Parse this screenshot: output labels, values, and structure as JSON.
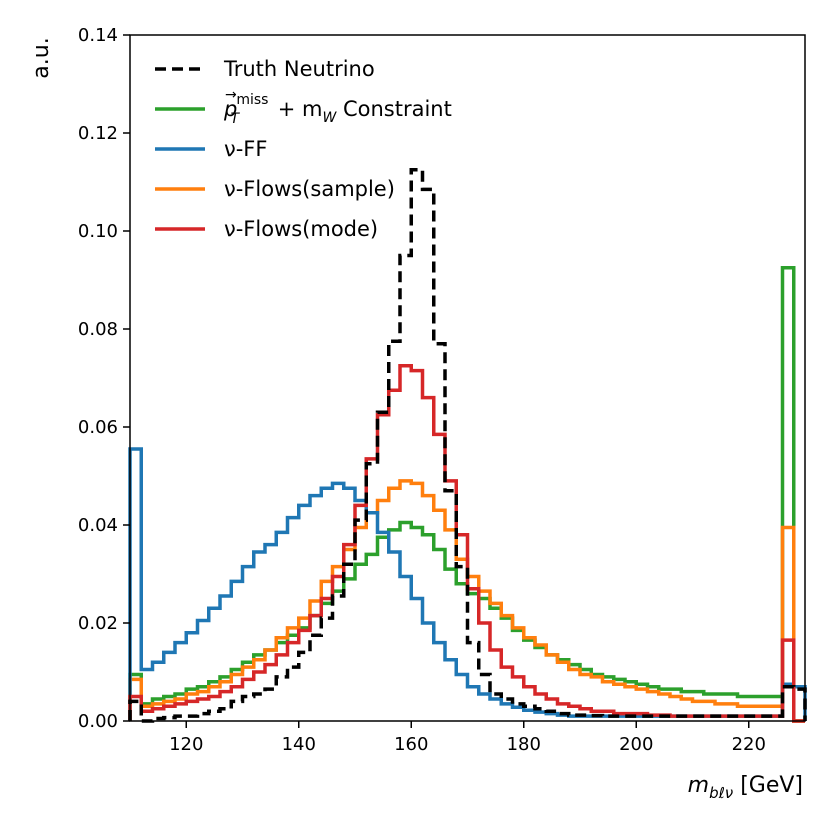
{
  "chart_data": {
    "type": "step-histogram",
    "title": "",
    "xlabel_main": "m",
    "xlabel_sub": "bℓν",
    "xlabel_unit": " [GeV]",
    "ylabel": "a.u.",
    "xlim": [
      110,
      230
    ],
    "ylim": [
      0,
      0.14
    ],
    "xticks": [
      120,
      140,
      160,
      180,
      200,
      220
    ],
    "yticks": [
      0.0,
      0.02,
      0.04,
      0.06,
      0.08,
      0.1,
      0.12,
      0.14
    ],
    "ytick_labels": [
      "0.00",
      "0.02",
      "0.04",
      "0.06",
      "0.08",
      "0.10",
      "0.12",
      "0.14"
    ],
    "bin_width": 2,
    "x_start": 110,
    "legend_position": "top-left",
    "series": [
      {
        "name": "Truth Neutrino",
        "color": "#000000",
        "dashed": true,
        "values": [
          0.004,
          0.0,
          0.0005,
          0.0007,
          0.001,
          0.001,
          0.0015,
          0.002,
          0.0025,
          0.004,
          0.005,
          0.0055,
          0.0065,
          0.009,
          0.011,
          0.014,
          0.0175,
          0.021,
          0.0255,
          0.032,
          0.041,
          0.0525,
          0.063,
          0.0775,
          0.095,
          0.1125,
          0.1085,
          0.077,
          0.047,
          0.0315,
          0.016,
          0.0095,
          0.0055,
          0.0045,
          0.0035,
          0.003,
          0.0025,
          0.002,
          0.0015,
          0.0012,
          0.0012,
          0.0011,
          0.001,
          0.001,
          0.001,
          0.001,
          0.001,
          0.001,
          0.001,
          0.001,
          0.001,
          0.001,
          0.001,
          0.001,
          0.001,
          0.001,
          0.001,
          0.001,
          0.007,
          0.0065
        ]
      },
      {
        "name": "p_T^miss + m_W Constraint",
        "color": "#2ca02c",
        "dashed": false,
        "values": [
          0.0095,
          0.0035,
          0.0045,
          0.005,
          0.0055,
          0.0065,
          0.007,
          0.008,
          0.009,
          0.0105,
          0.012,
          0.0135,
          0.0145,
          0.016,
          0.0175,
          0.019,
          0.0215,
          0.024,
          0.0265,
          0.029,
          0.032,
          0.034,
          0.0375,
          0.039,
          0.0405,
          0.0395,
          0.038,
          0.035,
          0.031,
          0.028,
          0.026,
          0.025,
          0.023,
          0.021,
          0.0185,
          0.0165,
          0.015,
          0.0135,
          0.0125,
          0.0115,
          0.0105,
          0.0095,
          0.009,
          0.0085,
          0.008,
          0.0075,
          0.007,
          0.0065,
          0.0065,
          0.006,
          0.006,
          0.0055,
          0.0055,
          0.0055,
          0.005,
          0.005,
          0.005,
          0.005,
          0.0925,
          0.0
        ]
      },
      {
        "name": "ν-FF",
        "color": "#1f77b4",
        "dashed": false,
        "values": [
          0.0555,
          0.0105,
          0.012,
          0.014,
          0.016,
          0.018,
          0.0205,
          0.023,
          0.0255,
          0.0285,
          0.0315,
          0.0345,
          0.036,
          0.0385,
          0.0415,
          0.044,
          0.046,
          0.0475,
          0.0485,
          0.0475,
          0.045,
          0.0425,
          0.0385,
          0.0345,
          0.0295,
          0.025,
          0.02,
          0.016,
          0.0125,
          0.0095,
          0.007,
          0.0055,
          0.0045,
          0.0035,
          0.0028,
          0.0022,
          0.0018,
          0.0015,
          0.0012,
          0.001,
          0.001,
          0.001,
          0.001,
          0.001,
          0.001,
          0.001,
          0.001,
          0.001,
          0.001,
          0.001,
          0.001,
          0.001,
          0.001,
          0.001,
          0.001,
          0.001,
          0.001,
          0.001,
          0.0075,
          0.007
        ]
      },
      {
        "name": "ν-Flows(sample)",
        "color": "#ff7f0e",
        "dashed": false,
        "values": [
          0.0085,
          0.003,
          0.0035,
          0.004,
          0.0045,
          0.0055,
          0.006,
          0.007,
          0.008,
          0.0095,
          0.011,
          0.0125,
          0.0145,
          0.017,
          0.019,
          0.021,
          0.0245,
          0.0285,
          0.0315,
          0.035,
          0.0395,
          0.0425,
          0.045,
          0.0475,
          0.049,
          0.0485,
          0.046,
          0.043,
          0.039,
          0.033,
          0.0295,
          0.0265,
          0.024,
          0.0215,
          0.019,
          0.017,
          0.0155,
          0.0135,
          0.012,
          0.0105,
          0.0095,
          0.009,
          0.008,
          0.0075,
          0.007,
          0.0065,
          0.006,
          0.0055,
          0.005,
          0.0045,
          0.004,
          0.004,
          0.0035,
          0.0035,
          0.003,
          0.003,
          0.003,
          0.003,
          0.0395,
          0.0
        ]
      },
      {
        "name": "ν-Flows(mode)",
        "color": "#d62728",
        "dashed": false,
        "values": [
          0.005,
          0.002,
          0.0025,
          0.003,
          0.0035,
          0.004,
          0.0045,
          0.005,
          0.006,
          0.007,
          0.0085,
          0.01,
          0.0115,
          0.0135,
          0.016,
          0.0185,
          0.0215,
          0.025,
          0.0295,
          0.036,
          0.044,
          0.0535,
          0.0625,
          0.0675,
          0.0725,
          0.0715,
          0.066,
          0.0585,
          0.049,
          0.038,
          0.027,
          0.02,
          0.0145,
          0.011,
          0.009,
          0.007,
          0.0055,
          0.0045,
          0.0035,
          0.003,
          0.0025,
          0.002,
          0.002,
          0.0015,
          0.0015,
          0.0015,
          0.0012,
          0.0012,
          0.001,
          0.001,
          0.001,
          0.001,
          0.001,
          0.001,
          0.001,
          0.001,
          0.001,
          0.001,
          0.0165,
          0.0
        ]
      }
    ],
    "legend": [
      {
        "label": "Truth Neutrino",
        "color": "#000000",
        "dashed": true
      },
      {
        "label_base": "p",
        "label_sup": "miss",
        "label_sub": "T",
        "label_mid": " + m",
        "label_sub2": "W",
        "label_tail": " Constraint",
        "color": "#2ca02c",
        "dashed": false
      },
      {
        "label": "ν-FF",
        "color": "#1f77b4",
        "dashed": false
      },
      {
        "label": "ν-Flows(sample)",
        "color": "#ff7f0e",
        "dashed": false
      },
      {
        "label": "ν-Flows(mode)",
        "color": "#d62728",
        "dashed": false
      }
    ]
  }
}
